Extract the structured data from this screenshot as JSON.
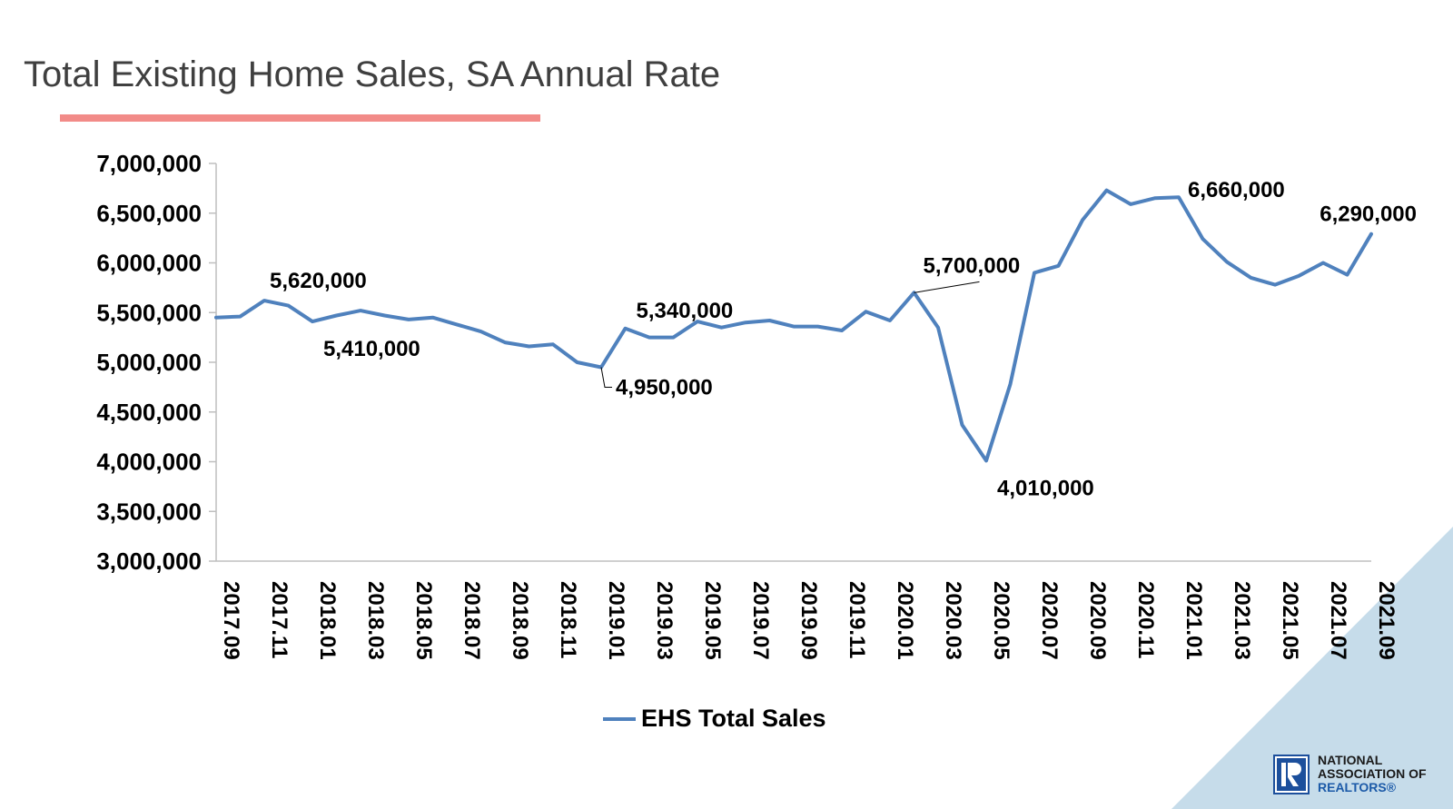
{
  "header": {
    "title": "Total Existing Home Sales, SA Annual Rate"
  },
  "logo": {
    "line1": "NATIONAL",
    "line2": "ASSOCIATION OF",
    "line3": "REALTORS®",
    "colors": {
      "mark": "#1c4f9c",
      "text_dark": "#1a1a1a",
      "text_blue": "#1c5aa8"
    }
  },
  "colors": {
    "title_underline": "#f28b88",
    "series_line": "#4f81bd",
    "corner_triangle": "#c6dcea"
  },
  "chart_data": {
    "type": "line",
    "title": "",
    "xlabel": "",
    "ylabel": "",
    "ylim": [
      3000000,
      7000000
    ],
    "yticks": [
      "7,000,000",
      "6,500,000",
      "6,000,000",
      "5,500,000",
      "5,000,000",
      "4,500,000",
      "4,000,000",
      "3,500,000",
      "3,000,000"
    ],
    "ytick_values": [
      7000000,
      6500000,
      6000000,
      5500000,
      5000000,
      4500000,
      4000000,
      3500000,
      3000000
    ],
    "grid": false,
    "legend_position": "bottom",
    "x": [
      "2017.09",
      "2017.10",
      "2017.11",
      "2017.12",
      "2018.01",
      "2018.02",
      "2018.03",
      "2018.04",
      "2018.05",
      "2018.06",
      "2018.07",
      "2018.08",
      "2018.09",
      "2018.10",
      "2018.11",
      "2018.12",
      "2019.01",
      "2019.02",
      "2019.03",
      "2019.04",
      "2019.05",
      "2019.06",
      "2019.07",
      "2019.08",
      "2019.09",
      "2019.10",
      "2019.11",
      "2019.12",
      "2020.01",
      "2020.02",
      "2020.03",
      "2020.04",
      "2020.05",
      "2020.06",
      "2020.07",
      "2020.08",
      "2020.09",
      "2020.10",
      "2020.11",
      "2020.12",
      "2021.01",
      "2021.02",
      "2021.03",
      "2021.04",
      "2021.05",
      "2021.06",
      "2021.07",
      "2021.08",
      "2021.09"
    ],
    "x_tick_labels": [
      "2017.09",
      "2017.11",
      "2018.01",
      "2018.03",
      "2018.05",
      "2018.07",
      "2018.09",
      "2018.11",
      "2019.01",
      "2019.03",
      "2019.05",
      "2019.07",
      "2019.09",
      "2019.11",
      "2020.01",
      "2020.03",
      "2020.05",
      "2020.07",
      "2020.09",
      "2020.11",
      "2021.01",
      "2021.03",
      "2021.05",
      "2021.07",
      "2021.09"
    ],
    "series": [
      {
        "name": "EHS Total Sales",
        "color": "#4f81bd",
        "values": [
          5450000,
          5460000,
          5620000,
          5570000,
          5410000,
          5470000,
          5520000,
          5470000,
          5430000,
          5450000,
          5380000,
          5310000,
          5200000,
          5160000,
          5180000,
          5000000,
          4950000,
          5340000,
          5250000,
          5250000,
          5410000,
          5350000,
          5400000,
          5420000,
          5360000,
          5360000,
          5320000,
          5510000,
          5420000,
          5700000,
          5350000,
          4370000,
          4010000,
          4780000,
          5900000,
          5970000,
          6430000,
          6730000,
          6590000,
          6650000,
          6660000,
          6240000,
          6010000,
          5850000,
          5780000,
          5870000,
          6000000,
          5880000,
          6290000
        ]
      }
    ],
    "annotations": [
      {
        "x": "2017.11",
        "value": 5620000,
        "label": "5,620,000",
        "anchor": "above"
      },
      {
        "x": "2018.01",
        "value": 5410000,
        "label": "5,410,000",
        "anchor": "below-right"
      },
      {
        "x": "2019.01",
        "value": 4950000,
        "label": "4,950,000",
        "anchor": "right-leader"
      },
      {
        "x": "2019.02",
        "value": 5340000,
        "label": "5,340,000",
        "anchor": "above-right"
      },
      {
        "x": "2020.02",
        "value": 5700000,
        "label": "5,700,000",
        "anchor": "upper-right-leader"
      },
      {
        "x": "2020.05",
        "value": 4010000,
        "label": "4,010,000",
        "anchor": "below-right"
      },
      {
        "x": "2021.01",
        "value": 6660000,
        "label": "6,660,000",
        "anchor": "above-right"
      },
      {
        "x": "2021.09",
        "value": 6290000,
        "label": "6,290,000",
        "anchor": "above"
      }
    ]
  }
}
